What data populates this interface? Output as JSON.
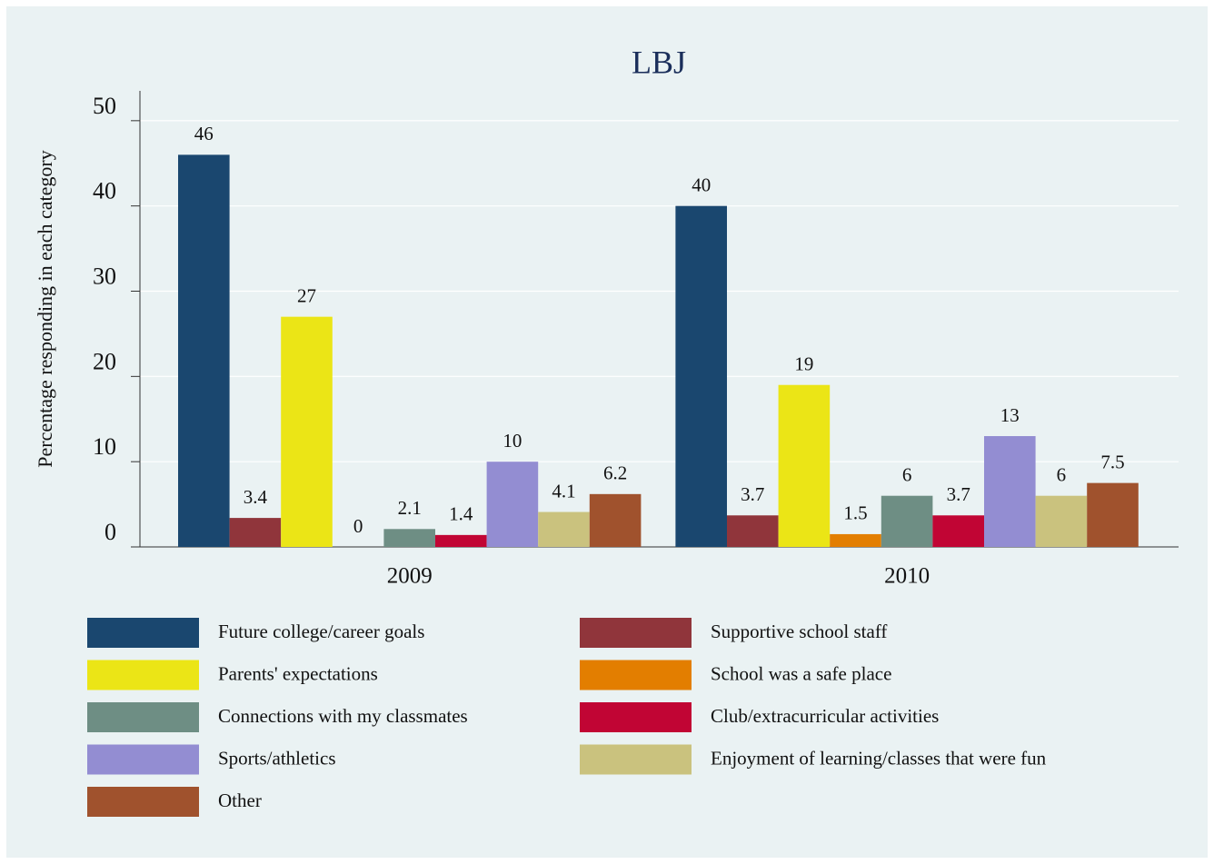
{
  "chart_data": {
    "type": "bar",
    "title": "LBJ",
    "y_label": "Percentage responding in each category",
    "categories": [
      "2009",
      "2010"
    ],
    "series": [
      {
        "name": "Future college/career goals",
        "color": "#1a476f",
        "values": [
          46,
          40
        ]
      },
      {
        "name": "Supportive school staff",
        "color": "#90353b",
        "values": [
          3.4,
          3.7
        ]
      },
      {
        "name": "Parents' expectations",
        "color": "#ebe516",
        "values": [
          27,
          19
        ]
      },
      {
        "name": "School was a safe place",
        "color": "#e37e00",
        "values": [
          0,
          1.5
        ]
      },
      {
        "name": "Connections with my classmates",
        "color": "#6e8e84",
        "values": [
          2.1,
          6
        ]
      },
      {
        "name": "Club/extracurricular activities",
        "color": "#c10534",
        "values": [
          1.4,
          3.7
        ]
      },
      {
        "name": "Sports/athletics",
        "color": "#938dd2",
        "values": [
          10,
          13
        ]
      },
      {
        "name": "Enjoyment of learning/classes that were fun",
        "color": "#cac27e",
        "values": [
          4.1,
          6
        ]
      },
      {
        "name": "Other",
        "color": "#a0522d",
        "values": [
          6.2,
          7.5
        ]
      }
    ],
    "ylim": [
      0,
      53.5
    ],
    "yticks": [
      0,
      10,
      20,
      30,
      40,
      50
    ],
    "grid": true,
    "legend": "bottom"
  }
}
